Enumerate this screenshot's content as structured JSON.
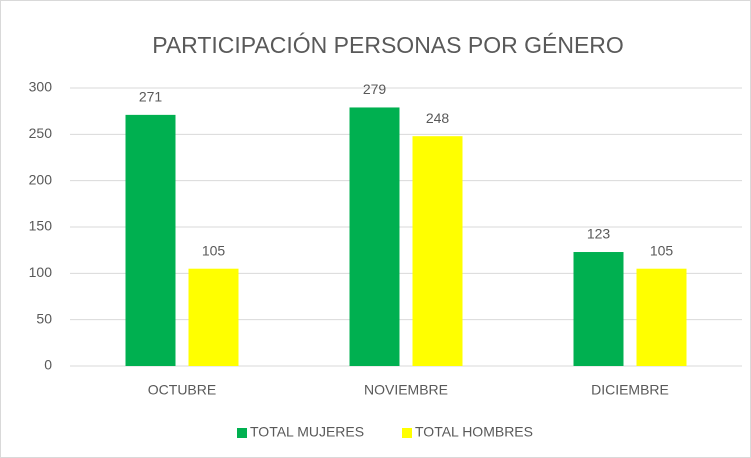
{
  "chart_data": {
    "type": "bar",
    "title": "PARTICIPACIÓN PERSONAS POR GÉNERO",
    "categories": [
      "OCTUBRE",
      "NOVIEMBRE",
      "DICIEMBRE"
    ],
    "series": [
      {
        "name": "TOTAL MUJERES",
        "color": "#00b050",
        "values": [
          271,
          279,
          123
        ]
      },
      {
        "name": "TOTAL HOMBRES",
        "color": "#ffff00",
        "values": [
          105,
          248,
          105
        ]
      }
    ],
    "ylim": [
      0,
      300
    ],
    "yticks": [
      0,
      50,
      100,
      150,
      200,
      250,
      300
    ],
    "grid": true,
    "legend": "bottom"
  }
}
